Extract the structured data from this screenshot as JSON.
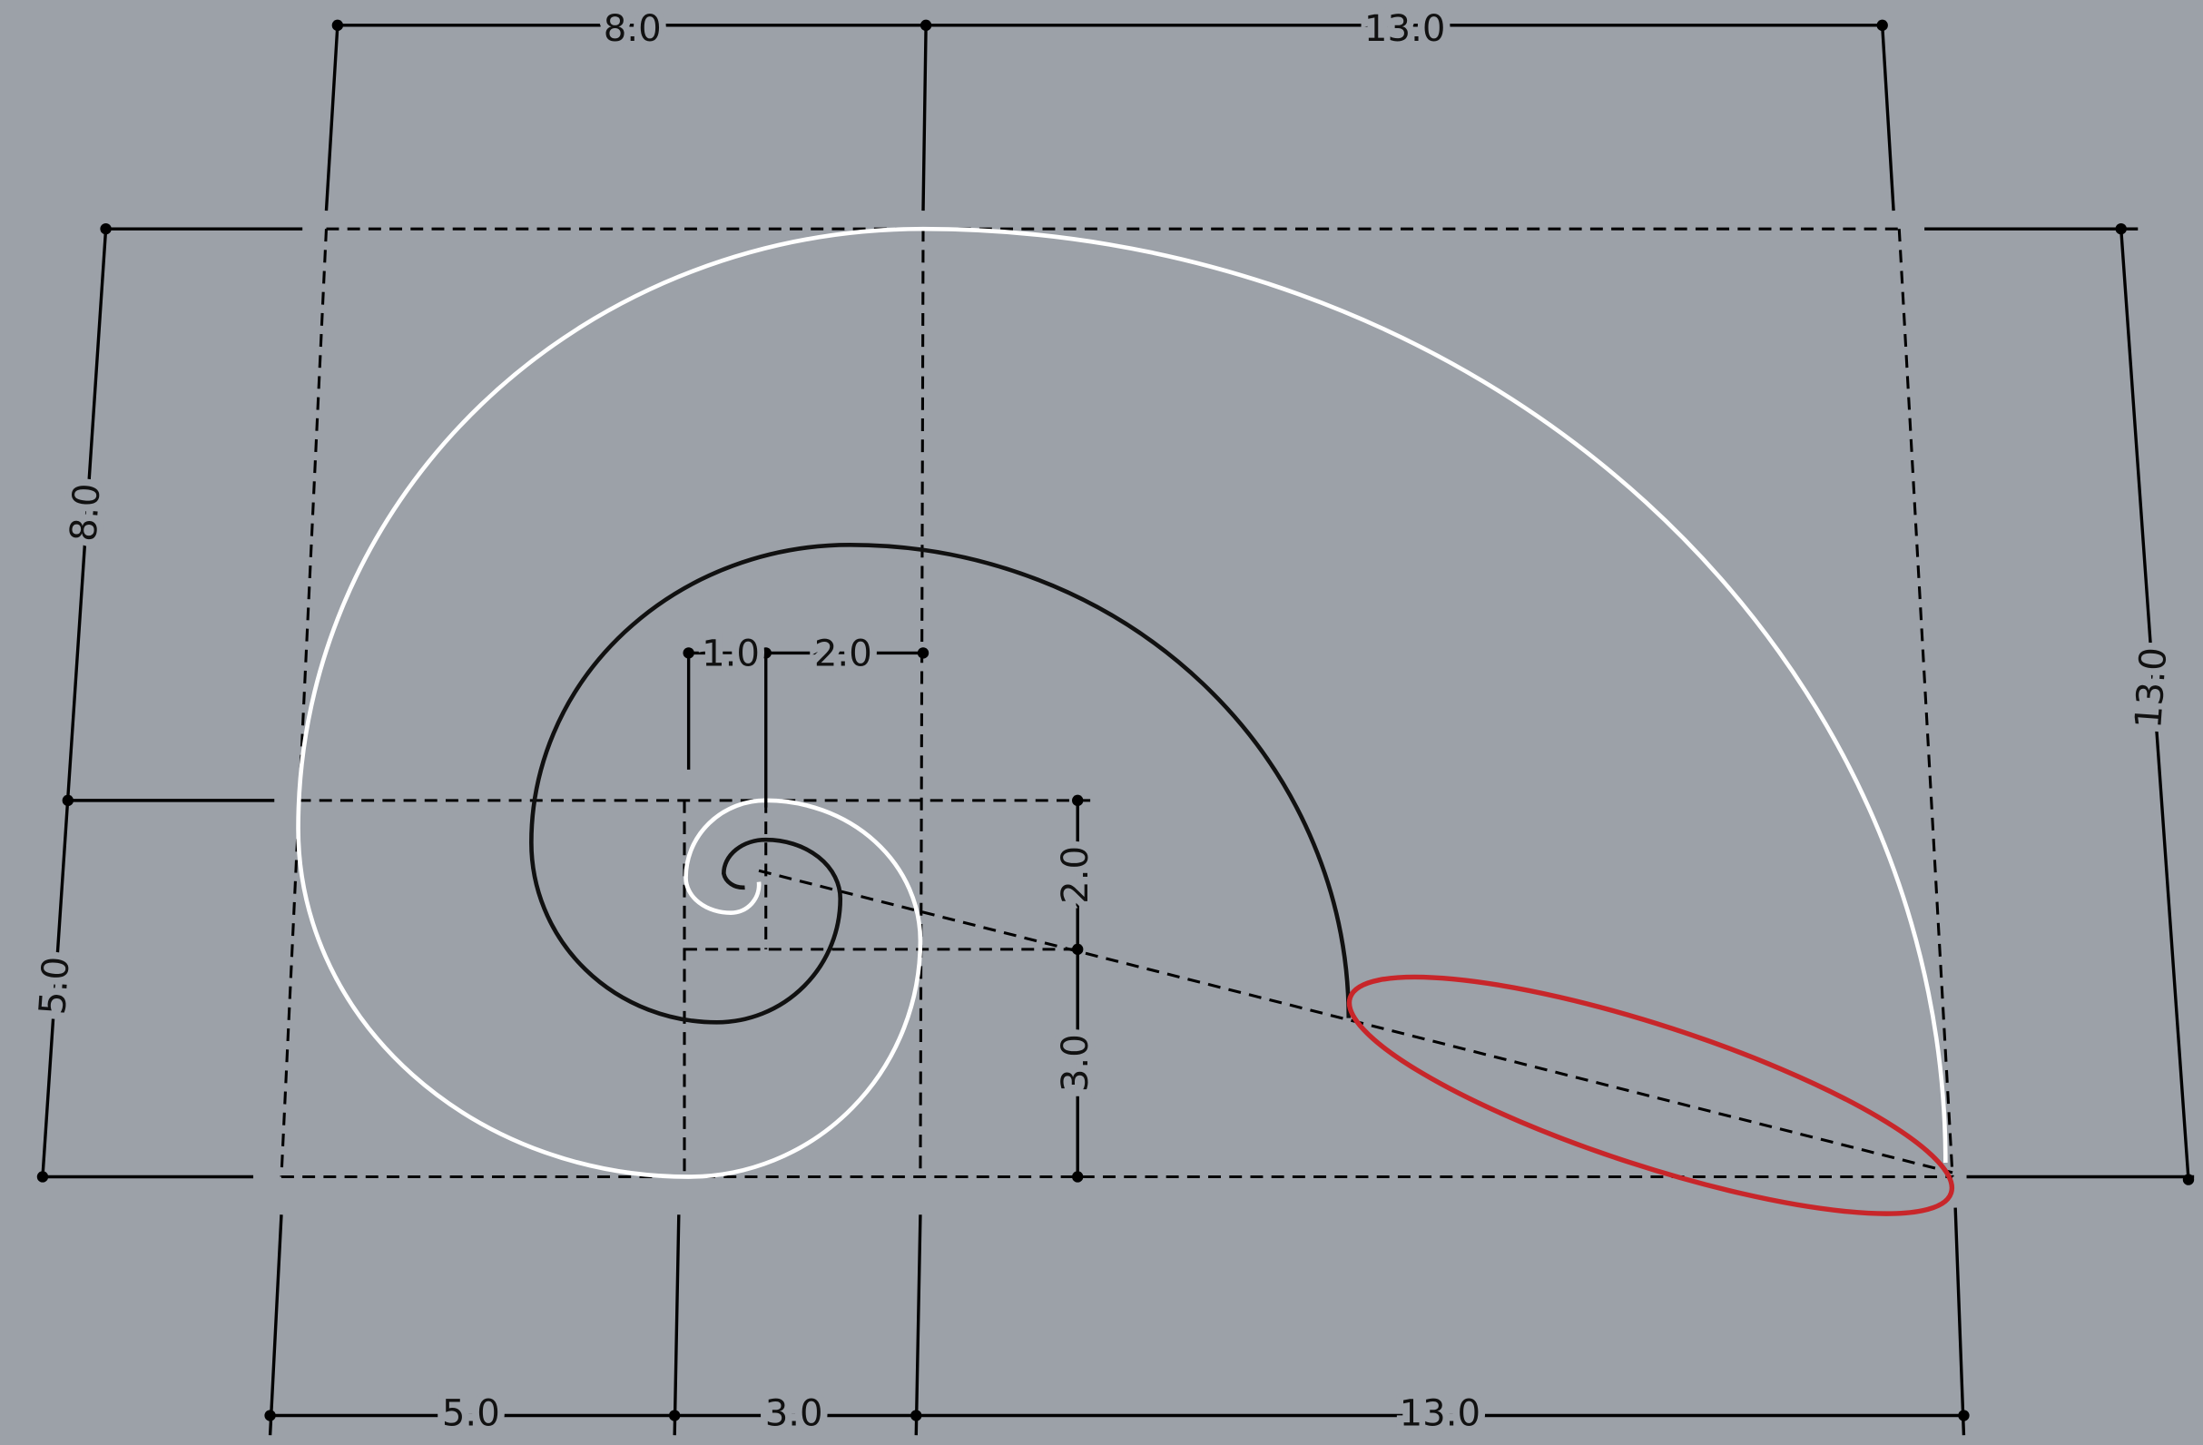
{
  "dimensions": {
    "top": [
      "8.0",
      "13.0"
    ],
    "left": [
      "8.0",
      "5.0"
    ],
    "right": [
      "13.0"
    ],
    "inner": [
      "1.0",
      "2.0",
      "2.0",
      "3.0"
    ],
    "bottom": [
      "5.0",
      "3.0",
      "13.0"
    ]
  }
}
